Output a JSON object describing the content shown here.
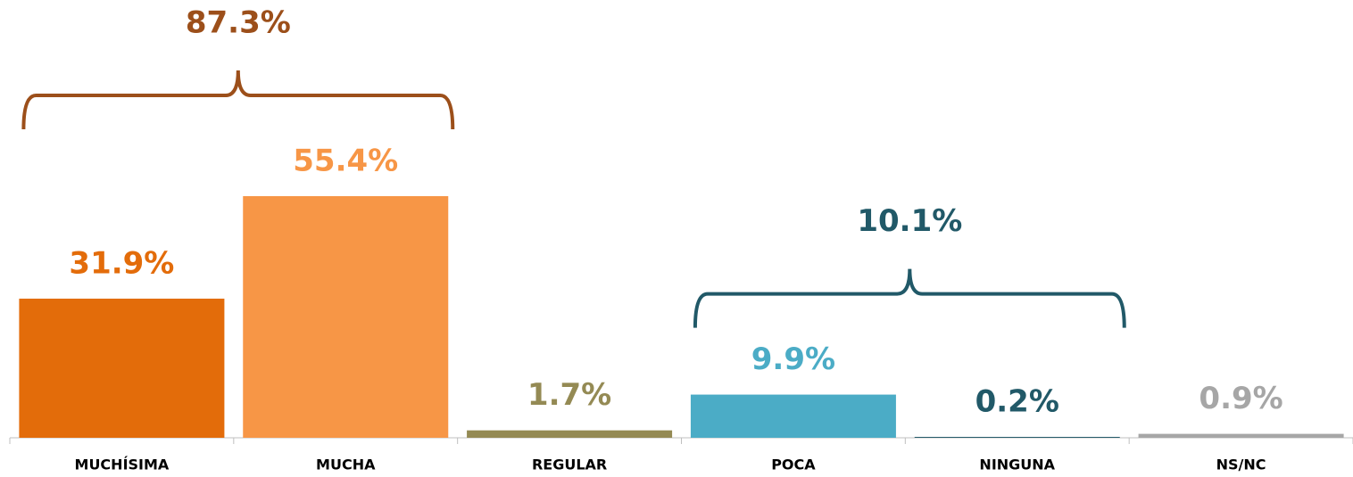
{
  "chart_data": {
    "type": "bar",
    "categories": [
      "MUCHÍSIMA",
      "MUCHA",
      "REGULAR",
      "POCA",
      "NINGUNA",
      "NS/NC"
    ],
    "values": [
      31.9,
      55.4,
      1.7,
      9.9,
      0.2,
      0.9
    ],
    "value_labels": [
      "31.9%",
      "55.4%",
      "1.7%",
      "9.9%",
      "0.2%",
      "0.9%"
    ],
    "colors": [
      "#e36c0a",
      "#f79646",
      "#948a54",
      "#4bacc6",
      "#215968",
      "#a6a6a6"
    ],
    "annotations": [
      {
        "text": "87.3%",
        "span": [
          0,
          1
        ],
        "color": "#9c4f1a"
      },
      {
        "text": "10.1%",
        "span": [
          3,
          4
        ],
        "color": "#215968"
      }
    ]
  }
}
